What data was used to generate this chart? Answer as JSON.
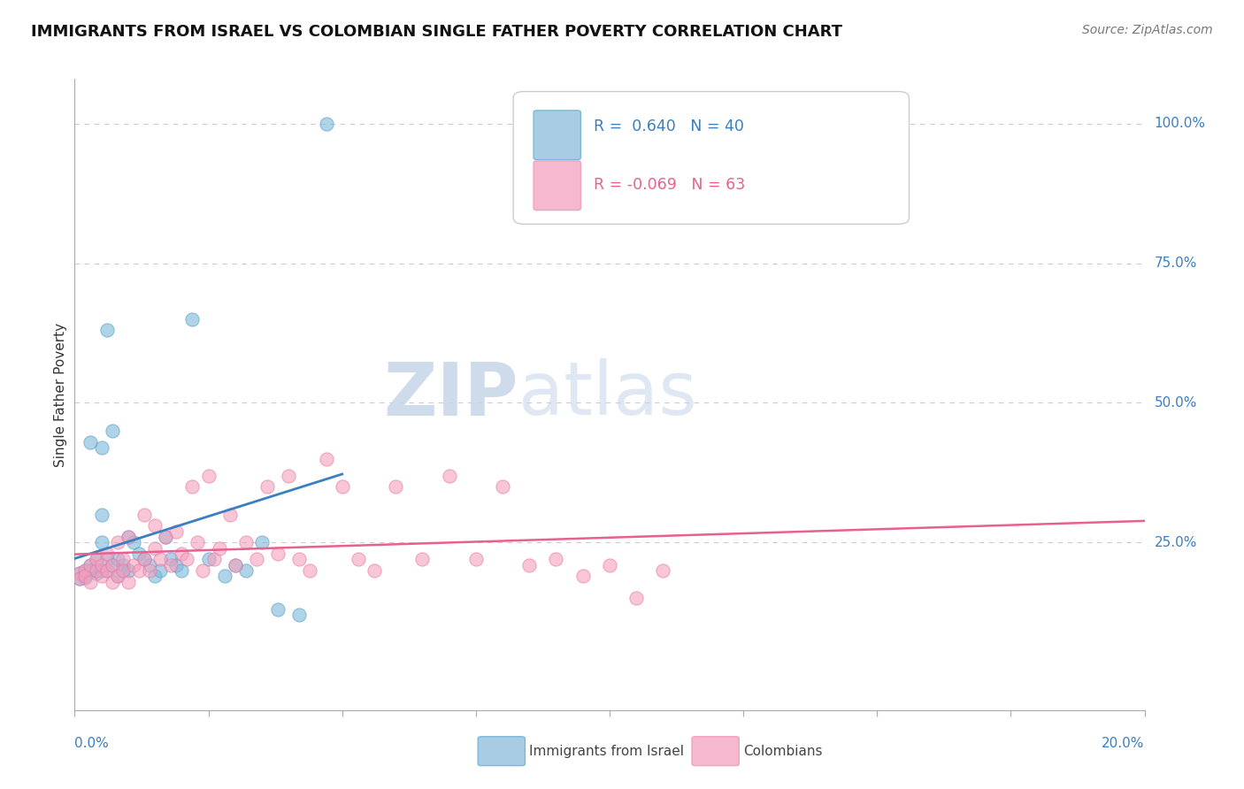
{
  "title": "IMMIGRANTS FROM ISRAEL VS COLOMBIAN SINGLE FATHER POVERTY CORRELATION CHART",
  "source": "Source: ZipAtlas.com",
  "ylabel": "Single Father Poverty",
  "xlim": [
    0.0,
    0.2
  ],
  "ylim": [
    -0.05,
    1.08
  ],
  "israel_color": "#7ab8d9",
  "colombian_color": "#f5a0bc",
  "israel_edge_color": "#5a9ec9",
  "colombian_edge_color": "#e87aaa",
  "trendline1_color": "#3a7fc1",
  "trendline2_color": "#e86090",
  "israel_points": [
    [
      0.001,
      0.195
    ],
    [
      0.001,
      0.185
    ],
    [
      0.002,
      0.195
    ],
    [
      0.002,
      0.188
    ],
    [
      0.002,
      0.2
    ],
    [
      0.003,
      0.21
    ],
    [
      0.003,
      0.43
    ],
    [
      0.003,
      0.2
    ],
    [
      0.004,
      0.22
    ],
    [
      0.004,
      0.2
    ],
    [
      0.004,
      0.195
    ],
    [
      0.005,
      0.42
    ],
    [
      0.005,
      0.3
    ],
    [
      0.005,
      0.25
    ],
    [
      0.005,
      0.2
    ],
    [
      0.006,
      0.2
    ],
    [
      0.006,
      0.22
    ],
    [
      0.006,
      0.63
    ],
    [
      0.007,
      0.45
    ],
    [
      0.007,
      0.21
    ],
    [
      0.008,
      0.22
    ],
    [
      0.008,
      0.19
    ],
    [
      0.009,
      0.2
    ],
    [
      0.009,
      0.21
    ],
    [
      0.01,
      0.26
    ],
    [
      0.01,
      0.2
    ],
    [
      0.011,
      0.25
    ],
    [
      0.012,
      0.23
    ],
    [
      0.013,
      0.22
    ],
    [
      0.014,
      0.21
    ],
    [
      0.015,
      0.19
    ],
    [
      0.016,
      0.2
    ],
    [
      0.017,
      0.26
    ],
    [
      0.018,
      0.22
    ],
    [
      0.019,
      0.21
    ],
    [
      0.02,
      0.2
    ],
    [
      0.022,
      0.65
    ],
    [
      0.025,
      0.22
    ],
    [
      0.028,
      0.19
    ],
    [
      0.03,
      0.21
    ],
    [
      0.032,
      0.2
    ],
    [
      0.035,
      0.25
    ],
    [
      0.038,
      0.13
    ],
    [
      0.042,
      0.12
    ],
    [
      0.047,
      1.0
    ]
  ],
  "colombian_points": [
    [
      0.001,
      0.195
    ],
    [
      0.001,
      0.185
    ],
    [
      0.002,
      0.2
    ],
    [
      0.002,
      0.19
    ],
    [
      0.003,
      0.21
    ],
    [
      0.003,
      0.18
    ],
    [
      0.004,
      0.2
    ],
    [
      0.004,
      0.22
    ],
    [
      0.005,
      0.19
    ],
    [
      0.005,
      0.21
    ],
    [
      0.006,
      0.23
    ],
    [
      0.006,
      0.2
    ],
    [
      0.007,
      0.18
    ],
    [
      0.007,
      0.21
    ],
    [
      0.008,
      0.25
    ],
    [
      0.008,
      0.19
    ],
    [
      0.009,
      0.22
    ],
    [
      0.009,
      0.2
    ],
    [
      0.01,
      0.18
    ],
    [
      0.01,
      0.26
    ],
    [
      0.011,
      0.21
    ],
    [
      0.012,
      0.2
    ],
    [
      0.013,
      0.22
    ],
    [
      0.013,
      0.3
    ],
    [
      0.014,
      0.2
    ],
    [
      0.015,
      0.28
    ],
    [
      0.015,
      0.24
    ],
    [
      0.016,
      0.22
    ],
    [
      0.017,
      0.26
    ],
    [
      0.018,
      0.21
    ],
    [
      0.019,
      0.27
    ],
    [
      0.02,
      0.23
    ],
    [
      0.021,
      0.22
    ],
    [
      0.022,
      0.35
    ],
    [
      0.023,
      0.25
    ],
    [
      0.024,
      0.2
    ],
    [
      0.025,
      0.37
    ],
    [
      0.026,
      0.22
    ],
    [
      0.027,
      0.24
    ],
    [
      0.029,
      0.3
    ],
    [
      0.03,
      0.21
    ],
    [
      0.032,
      0.25
    ],
    [
      0.034,
      0.22
    ],
    [
      0.036,
      0.35
    ],
    [
      0.038,
      0.23
    ],
    [
      0.04,
      0.37
    ],
    [
      0.042,
      0.22
    ],
    [
      0.044,
      0.2
    ],
    [
      0.047,
      0.4
    ],
    [
      0.05,
      0.35
    ],
    [
      0.053,
      0.22
    ],
    [
      0.056,
      0.2
    ],
    [
      0.06,
      0.35
    ],
    [
      0.065,
      0.22
    ],
    [
      0.07,
      0.37
    ],
    [
      0.075,
      0.22
    ],
    [
      0.08,
      0.35
    ],
    [
      0.085,
      0.21
    ],
    [
      0.09,
      0.22
    ],
    [
      0.095,
      0.19
    ],
    [
      0.1,
      0.21
    ],
    [
      0.105,
      0.15
    ],
    [
      0.11,
      0.2
    ]
  ],
  "watermark_zip_color": "#c5d5e8",
  "watermark_atlas_color": "#c5d5e8",
  "background_color": "#ffffff",
  "grid_color": "#cccccc"
}
